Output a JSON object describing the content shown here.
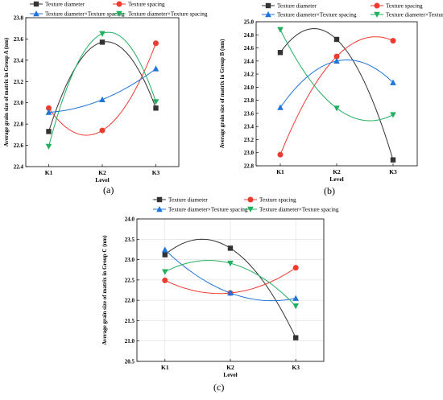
{
  "panel_labels": [
    "(a)",
    "(b)",
    "(c)"
  ],
  "colors": {
    "Texture diameter": "#333333",
    "Texture spacing": "#ee3b2f",
    "Texture diameter×Texture spacing": "#1f73d9",
    "Texture diameter×Texture spacing 2": "#22b060"
  },
  "chart_data": [
    {
      "type": "line",
      "smooth": true,
      "title": "",
      "xlabel": "Level",
      "ylabel": "Average grain size of matrix in Group A (nm)",
      "categories": [
        "K1",
        "K2",
        "K3"
      ],
      "ylim": [
        22.4,
        23.8
      ],
      "yticks": [
        22.4,
        22.6,
        22.8,
        23.0,
        23.2,
        23.4,
        23.6,
        23.8
      ],
      "legend": "top",
      "grid": false,
      "series": [
        {
          "name": "Texture diameter",
          "marker": "square",
          "values": [
            22.73,
            23.57,
            22.95
          ]
        },
        {
          "name": "Texture spacing",
          "marker": "circle",
          "values": [
            22.95,
            22.74,
            23.56
          ]
        },
        {
          "name": "Texture diameter×Texture spacing",
          "marker": "triangle-up",
          "values": [
            22.91,
            23.03,
            23.32
          ]
        },
        {
          "name": "Texture diameter×Texture spacing",
          "marker": "triangle-down",
          "values": [
            22.59,
            23.65,
            23.01
          ]
        }
      ]
    },
    {
      "type": "line",
      "smooth": true,
      "title": "",
      "xlabel": "Level",
      "ylabel": "Average grain size of matrix in Group B (nm)",
      "categories": [
        "K1",
        "K2",
        "K3"
      ],
      "ylim": [
        22.8,
        25.0
      ],
      "yticks": [
        22.8,
        23.0,
        23.2,
        23.4,
        23.6,
        23.8,
        24.0,
        24.2,
        24.4,
        24.6,
        24.8,
        25.0
      ],
      "legend": "top",
      "grid": false,
      "series": [
        {
          "name": "Texture diameter",
          "marker": "square",
          "values": [
            24.53,
            24.73,
            22.89
          ]
        },
        {
          "name": "Texture spacing",
          "marker": "circle",
          "values": [
            22.97,
            24.47,
            24.71
          ]
        },
        {
          "name": "Texture diameter×Texture spacing",
          "marker": "triangle-up",
          "values": [
            23.69,
            24.4,
            24.07
          ]
        },
        {
          "name": "Texture diameter×Texture spacing",
          "marker": "triangle-down",
          "values": [
            24.88,
            23.68,
            23.58
          ]
        }
      ]
    },
    {
      "type": "line",
      "smooth": true,
      "title": "",
      "xlabel": "Level",
      "ylabel": "Average grain size of matrix in Group C (nm)",
      "categories": [
        "K1",
        "K2",
        "K3"
      ],
      "ylim": [
        20.5,
        24.0
      ],
      "yticks": [
        20.5,
        21.0,
        21.5,
        22.0,
        22.5,
        23.0,
        23.5,
        24.0
      ],
      "legend": "top",
      "grid": true,
      "series": [
        {
          "name": "Texture diameter",
          "marker": "square",
          "values": [
            23.12,
            23.28,
            21.08
          ]
        },
        {
          "name": "Texture spacing",
          "marker": "circle",
          "values": [
            22.49,
            22.18,
            22.8
          ]
        },
        {
          "name": "Texture diameter×Texture spacing",
          "marker": "triangle-up",
          "values": [
            23.24,
            22.18,
            22.05
          ]
        },
        {
          "name": "Texture diameter×Texture spacing",
          "marker": "triangle-down",
          "values": [
            22.7,
            22.91,
            21.86
          ]
        }
      ]
    }
  ]
}
